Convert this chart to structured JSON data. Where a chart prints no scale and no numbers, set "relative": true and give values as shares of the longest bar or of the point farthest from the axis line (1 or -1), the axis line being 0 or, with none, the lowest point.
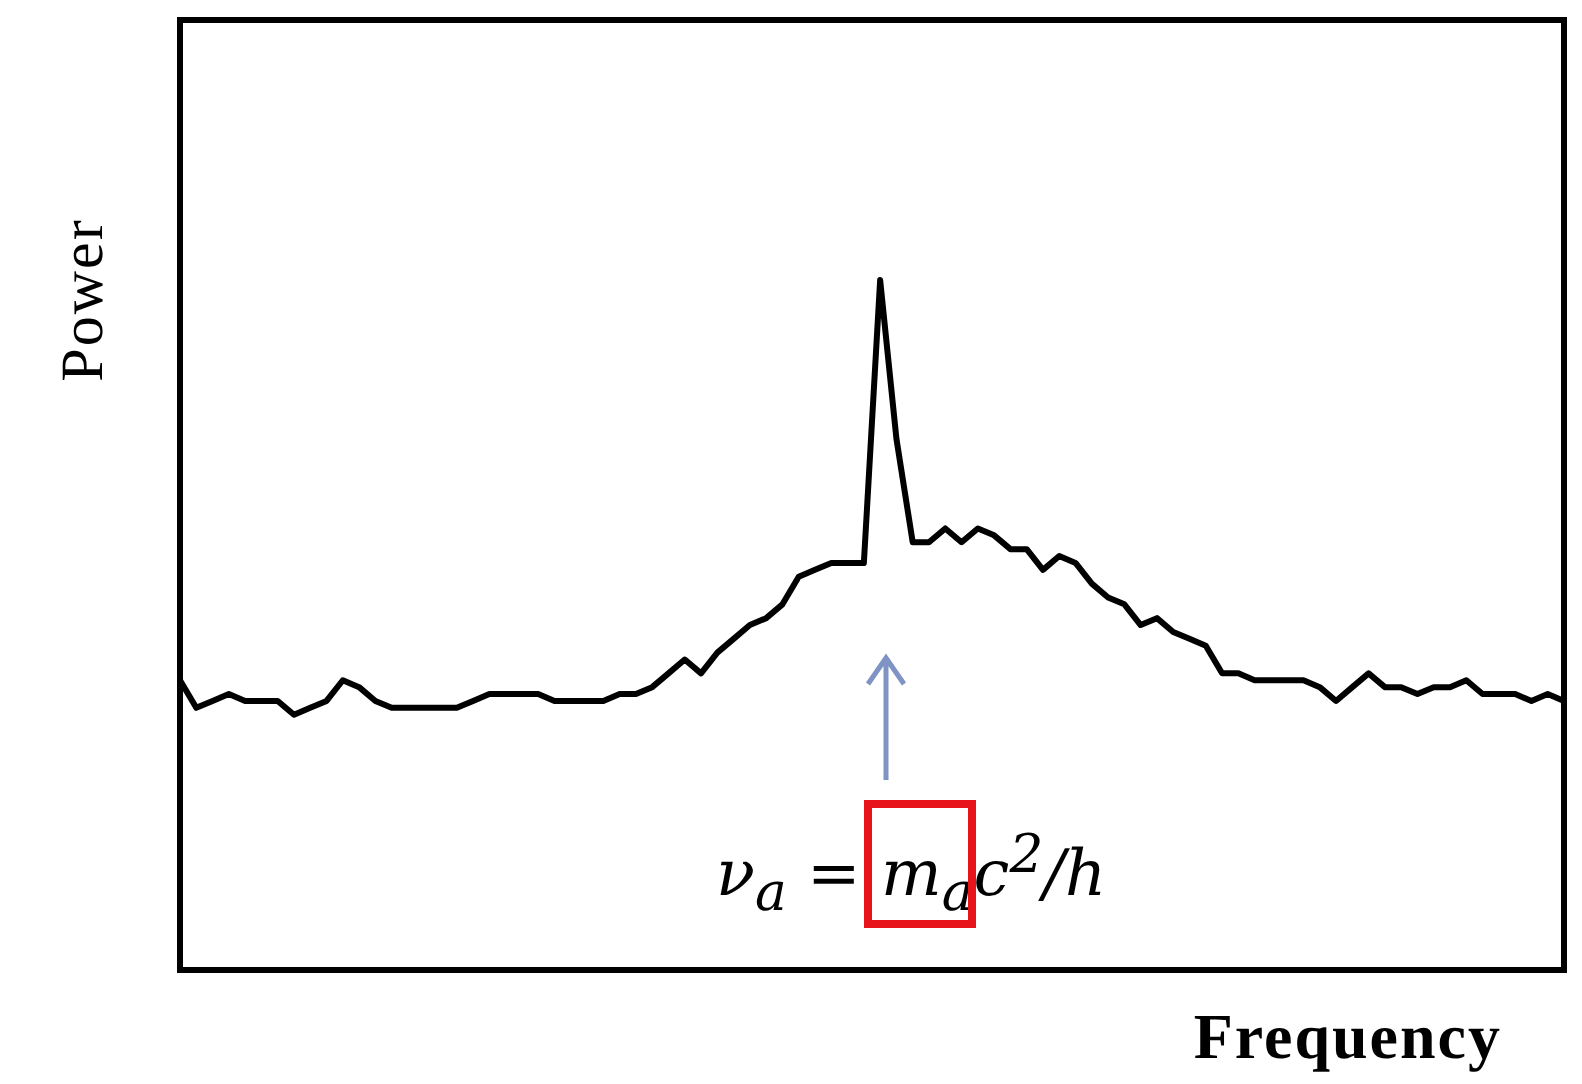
{
  "chart_data": {
    "type": "line",
    "relative": true,
    "xlabel": "Frequency",
    "ylabel": "Power",
    "color": "#000000",
    "annotations": [
      "ν$_{a}$ = m$_{a}$c$^{2}$/h"
    ],
    "categories": [
      null,
      null,
      null,
      null,
      null,
      null,
      null,
      null,
      null,
      null,
      null,
      null,
      null,
      null,
      null,
      null,
      null,
      null,
      null,
      null,
      null,
      null,
      null,
      null,
      null,
      null,
      null,
      null,
      null,
      null,
      null,
      null,
      null,
      null,
      null,
      null,
      null,
      null,
      null,
      null,
      null,
      null,
      null,
      null,
      null,
      null,
      null,
      null,
      null,
      null,
      null,
      null,
      null,
      null,
      null,
      null,
      null,
      null,
      null,
      null,
      null,
      null,
      null,
      null,
      null,
      null,
      null,
      null,
      null,
      null,
      null,
      null,
      null,
      null,
      null,
      null,
      null,
      null,
      null,
      null,
      null,
      null,
      null,
      null,
      null,
      null
    ],
    "values": [
      0.42,
      0.38,
      0.39,
      0.4,
      0.39,
      0.39,
      0.39,
      0.37,
      0.38,
      0.39,
      0.42,
      0.41,
      0.39,
      0.38,
      0.38,
      0.38,
      0.38,
      0.38,
      0.39,
      0.4,
      0.4,
      0.4,
      0.4,
      0.39,
      0.39,
      0.39,
      0.39,
      0.4,
      0.4,
      0.41,
      0.43,
      0.45,
      0.43,
      0.46,
      0.48,
      0.5,
      0.51,
      0.53,
      0.57,
      0.58,
      0.59,
      0.59,
      0.59,
      1.0,
      0.77,
      0.62,
      0.62,
      0.64,
      0.62,
      0.64,
      0.63,
      0.61,
      0.61,
      0.58,
      0.6,
      0.59,
      0.56,
      0.54,
      0.53,
      0.5,
      0.51,
      0.49,
      0.48,
      0.47,
      0.43,
      0.43,
      0.42,
      0.42,
      0.42,
      0.42,
      0.41,
      0.39,
      0.41,
      0.43,
      0.41,
      0.41,
      0.4,
      0.41,
      0.41,
      0.42,
      0.4,
      0.4,
      0.4,
      0.39,
      0.4,
      0.39
    ]
  }
}
